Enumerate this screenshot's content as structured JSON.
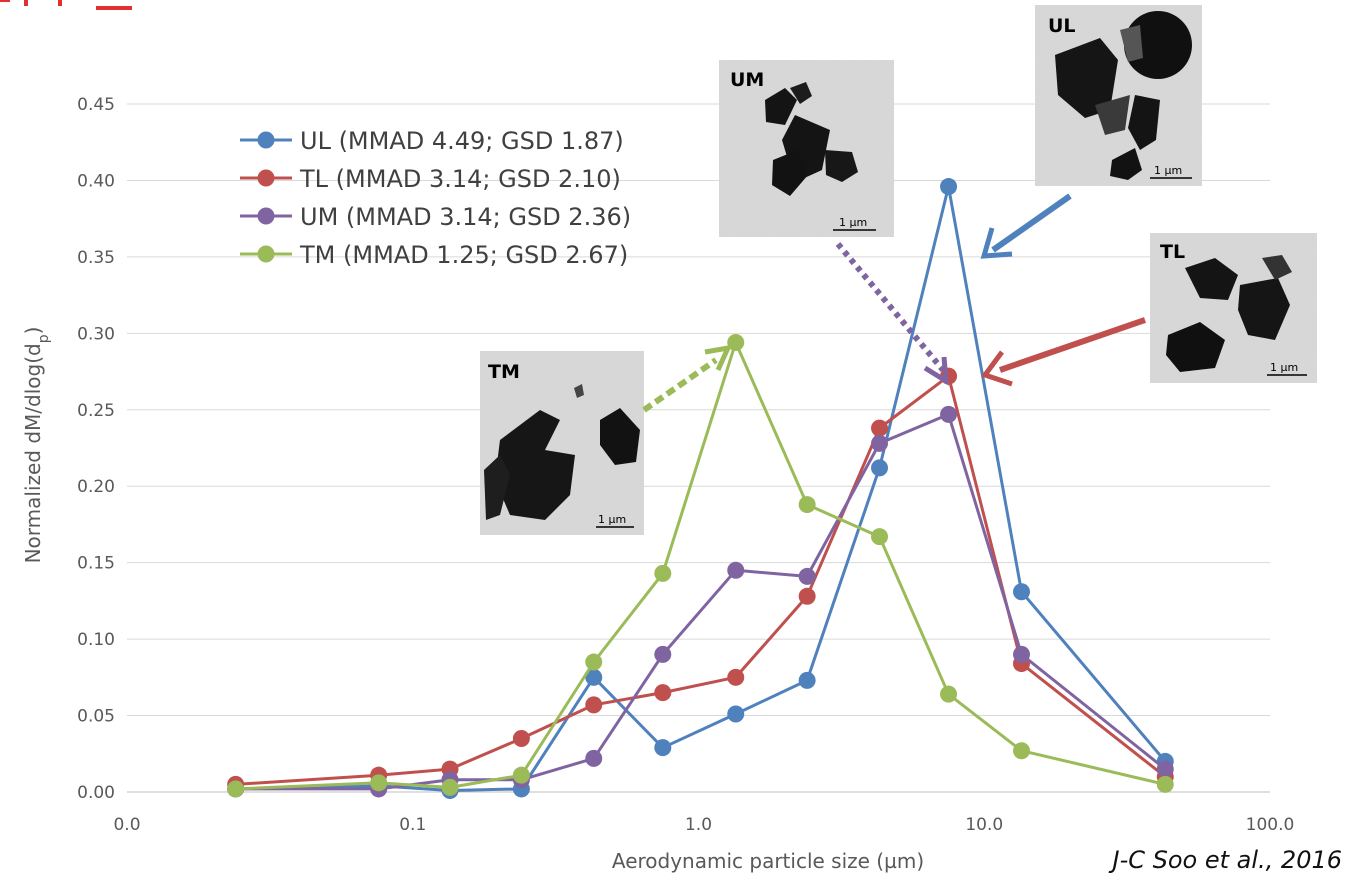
{
  "chart_data": {
    "type": "line",
    "xscale": "log",
    "xlim": [
      0.01,
      100
    ],
    "ylim": [
      0,
      0.45
    ],
    "xlabel": "Aerodynamic particle size  (µm)",
    "ylabel": "Normalized dM/dlog(d",
    "ylabel_sub": "p",
    "ylabel_close": ")",
    "xticks": [
      {
        "value": 0.01,
        "label": "0.0"
      },
      {
        "value": 0.1,
        "label": "0.1"
      },
      {
        "value": 1,
        "label": "1.0"
      },
      {
        "value": 10,
        "label": "10.0"
      },
      {
        "value": 100,
        "label": "100.0"
      }
    ],
    "yticks": [
      {
        "value": 0,
        "label": "0.00"
      },
      {
        "value": 0.05,
        "label": "0.05"
      },
      {
        "value": 0.1,
        "label": "0.10"
      },
      {
        "value": 0.15,
        "label": "0.15"
      },
      {
        "value": 0.2,
        "label": "0.20"
      },
      {
        "value": 0.25,
        "label": "0.25"
      },
      {
        "value": 0.3,
        "label": "0.30"
      },
      {
        "value": 0.35,
        "label": "0.35"
      },
      {
        "value": 0.4,
        "label": "0.40"
      },
      {
        "value": 0.45,
        "label": "0.45"
      }
    ],
    "grid": "horizontal",
    "legend_position": "top-left",
    "x": [
      0.024,
      0.076,
      0.135,
      0.24,
      0.43,
      0.75,
      1.35,
      2.4,
      4.3,
      7.5,
      13.5,
      43
    ],
    "series": [
      {
        "name": "UL (MMAD 4.49; GSD 1.87)",
        "color": "#4f81bd",
        "values": [
          0.002,
          0.004,
          0.001,
          0.002,
          0.075,
          0.029,
          0.051,
          0.073,
          0.212,
          0.396,
          0.131,
          0.02
        ]
      },
      {
        "name": "TL  (MMAD 3.14; GSD 2.10)",
        "color": "#c0504d",
        "values": [
          0.005,
          0.011,
          0.015,
          0.035,
          0.057,
          0.065,
          0.075,
          0.128,
          0.238,
          0.272,
          0.084,
          0.01
        ]
      },
      {
        "name": "UM (MMAD 3.14; GSD 2.36)",
        "color": "#8064a2",
        "values": [
          0.002,
          0.002,
          0.008,
          0.008,
          0.022,
          0.09,
          0.145,
          0.141,
          0.228,
          0.247,
          0.09,
          0.015
        ]
      },
      {
        "name": "TM  (MMAD 1.25; GSD 2.67)",
        "color": "#9bbb59",
        "values": [
          0.002,
          0.006,
          0.003,
          0.011,
          0.085,
          0.143,
          0.294,
          0.188,
          0.167,
          0.064,
          0.027,
          0.005
        ]
      }
    ],
    "annotations": {
      "tem_labels": [
        "UL",
        "UM",
        "TL",
        "TM"
      ],
      "scale_bar": "1 µm",
      "citation": "J-C Soo et al., 2016"
    }
  }
}
